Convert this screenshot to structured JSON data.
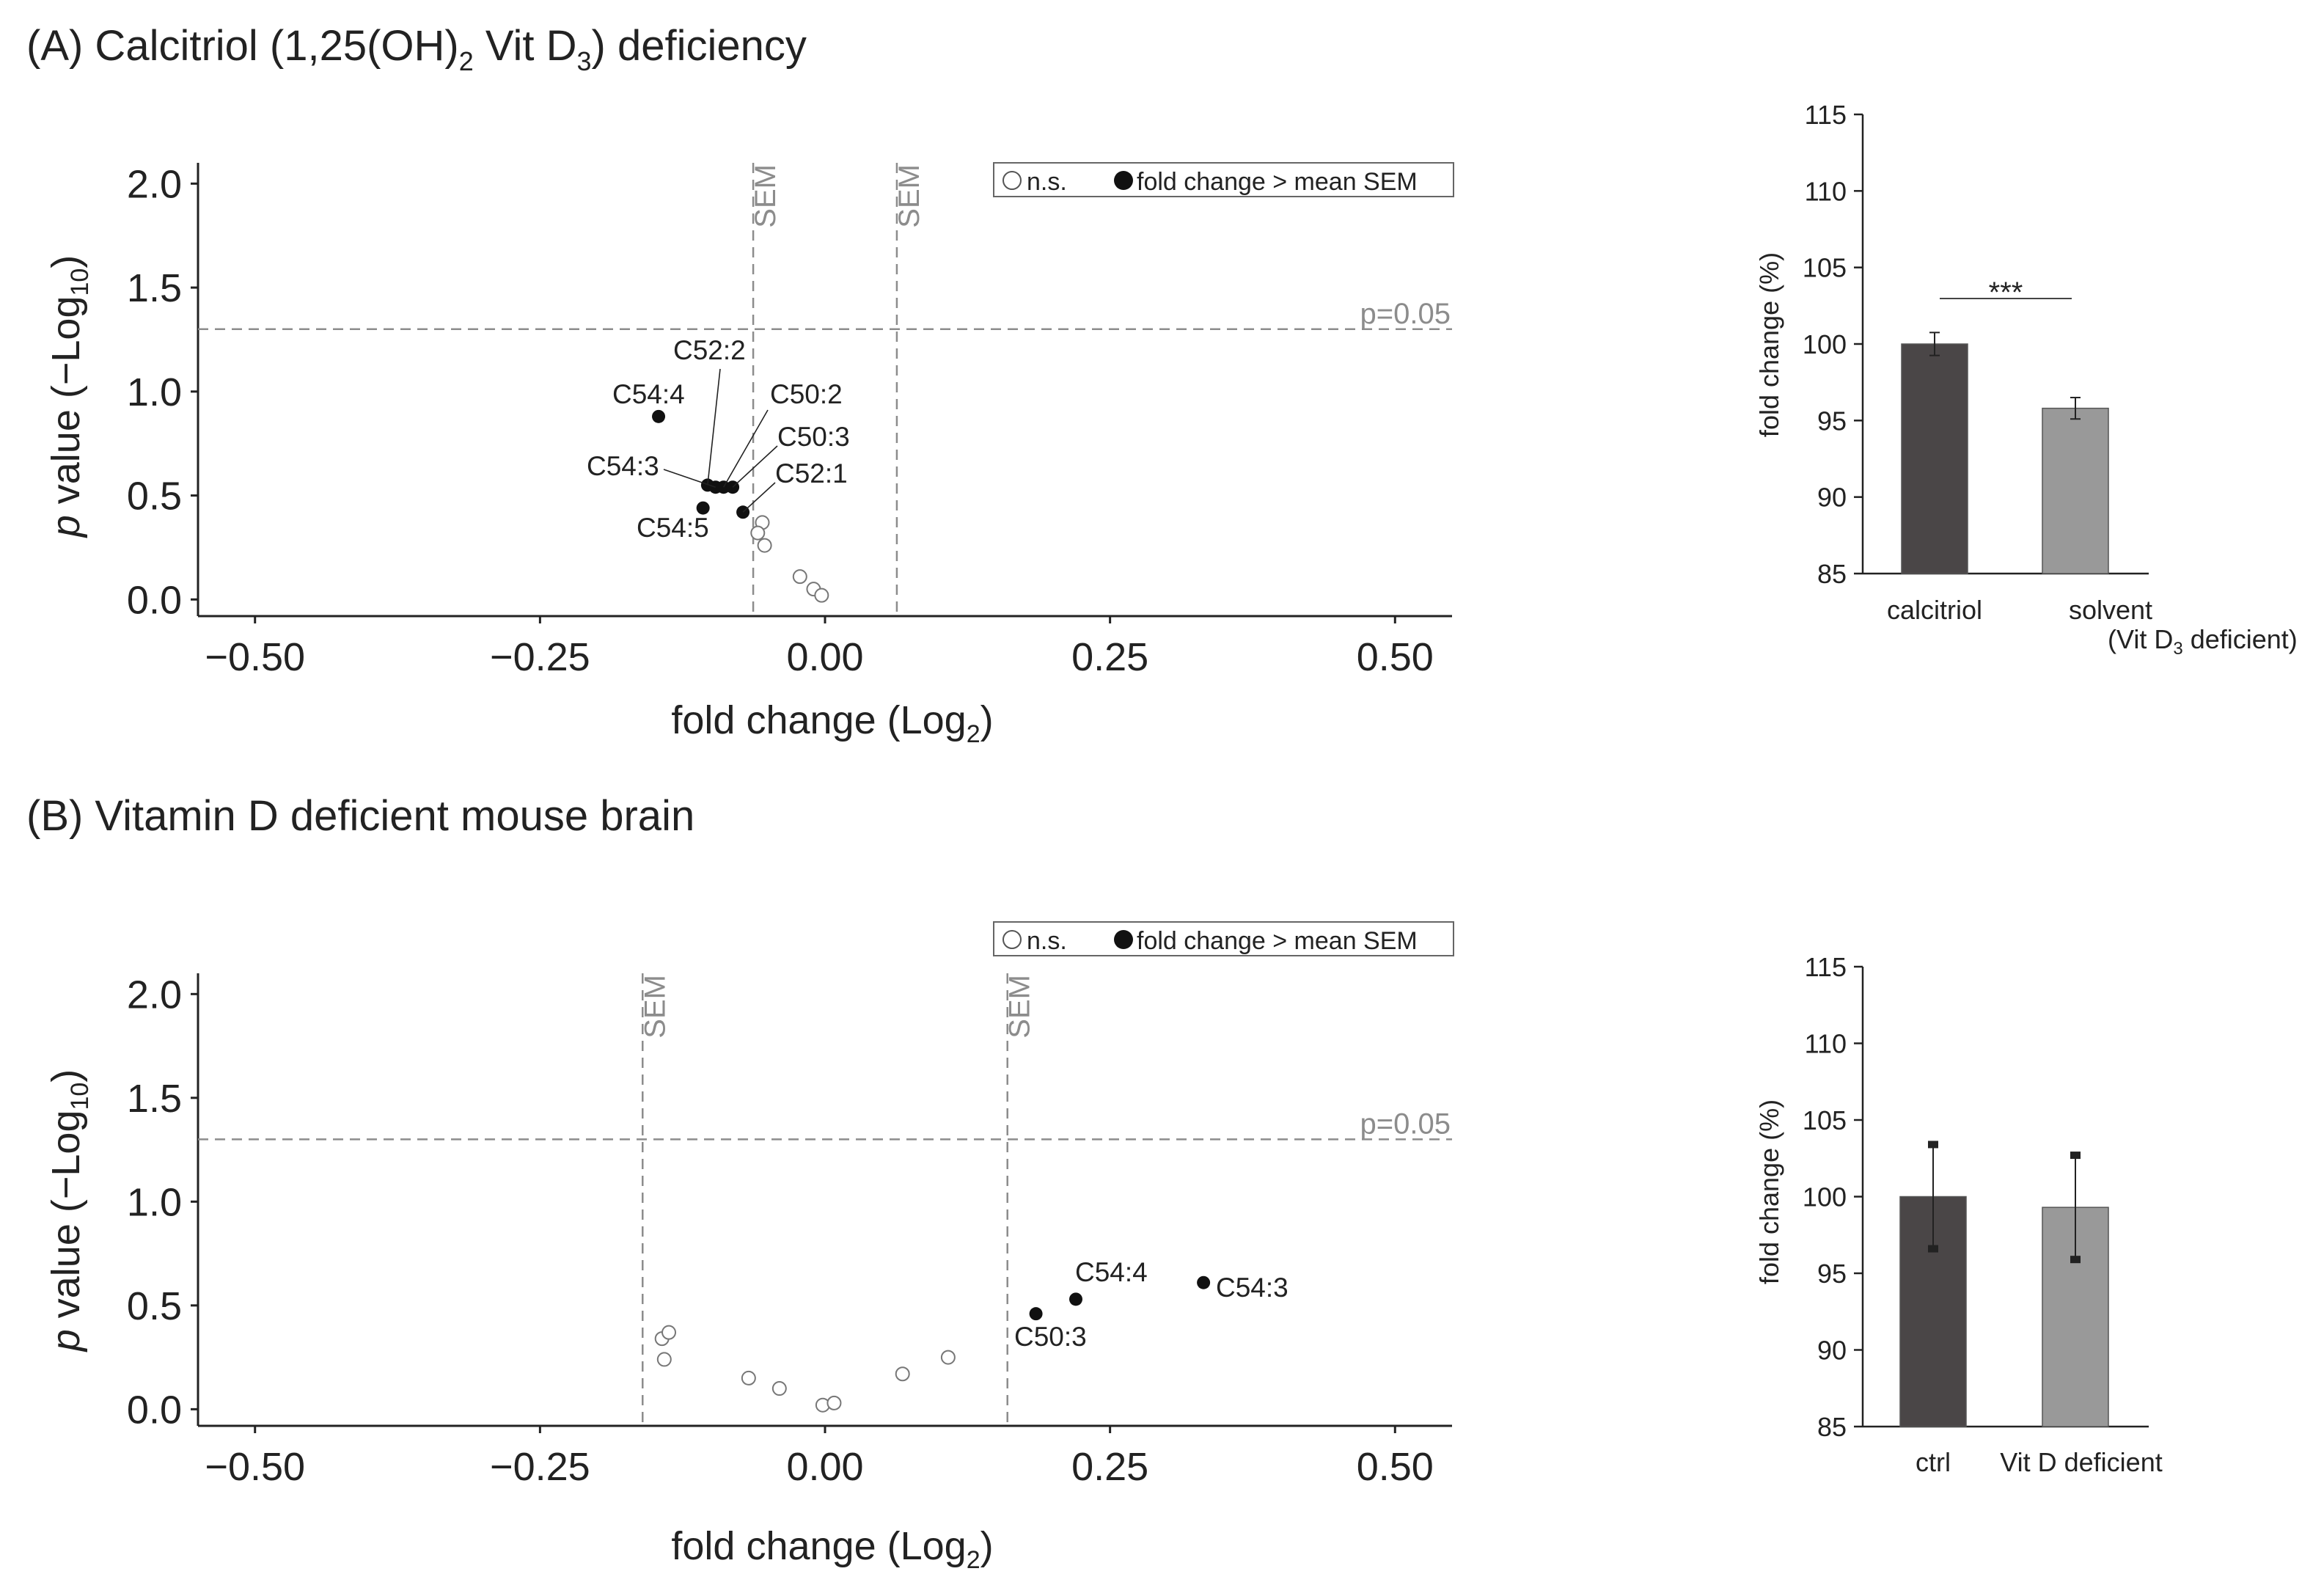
{
  "panel_a": {
    "title_main": "(A) Calcitriol (1,25(OH)",
    "title_sub2": "2",
    "title_mid": " Vit D",
    "title_sub3": "3",
    "title_end": ") deficiency"
  },
  "panel_b": {
    "title": "(B) Vitamin D deficient mouse brain"
  },
  "legend": {
    "ns_label": "n.s.",
    "sig_label": "fold change > mean SEM"
  },
  "sem_label": "SEM",
  "pthreshold_label": "p=0.05",
  "volcano_xlabel_main": "fold change (Log",
  "volcano_xlabel_sub": "2",
  "volcano_xlabel_end": ")",
  "volcano_ylabel_italic": "p",
  "volcano_ylabel_main": " value (−Log",
  "volcano_ylabel_sub": "10",
  "volcano_ylabel_end": ")",
  "bar_ylabel": "fold change (%)",
  "significance": "***",
  "bar_a_cat2_line2_main": "(Vit D",
  "bar_a_cat2_line2_sub": "3",
  "bar_a_cat2_line2_end": " deficient)",
  "colors": {
    "sig": "#111111",
    "ns_stroke": "#777777",
    "dash": "#8c8c8c",
    "dark_bar": "#4a4647",
    "light_bar": "#999999",
    "grey_text": "#8c8c8c"
  },
  "chart_data": [
    {
      "type": "scatter",
      "name": "volcano_A",
      "xlim": [
        -0.55,
        0.55
      ],
      "ylim": [
        -0.08,
        2.1
      ],
      "xticks": [
        -0.5,
        -0.25,
        0,
        0.25,
        0.5
      ],
      "xtick_labels": [
        "−0.50",
        "−0.25",
        "0.00",
        "0.25",
        "0.50"
      ],
      "yticks": [
        0,
        0.5,
        1.0,
        1.5,
        2.0
      ],
      "ytick_labels": [
        "0.0",
        "0.5",
        "1.0",
        "1.5",
        "2.0"
      ],
      "sem_lines": [
        -0.063,
        0.063
      ],
      "p_threshold": 1.3,
      "points_sig": [
        {
          "label": "C54:4",
          "x": -0.146,
          "y": 0.88
        },
        {
          "label": "C52:2",
          "x": -0.103,
          "y": 0.55
        },
        {
          "label": "C50:2",
          "x": -0.089,
          "y": 0.54
        },
        {
          "label": "C50:3",
          "x": -0.081,
          "y": 0.54
        },
        {
          "label": "C54:3",
          "x": -0.096,
          "y": 0.54
        },
        {
          "label": "C52:1",
          "x": -0.072,
          "y": 0.42
        },
        {
          "label": "C54:5",
          "x": -0.107,
          "y": 0.44
        }
      ],
      "points_ns": [
        {
          "x": -0.055,
          "y": 0.37
        },
        {
          "x": -0.059,
          "y": 0.32
        },
        {
          "x": -0.053,
          "y": 0.26
        },
        {
          "x": -0.022,
          "y": 0.11
        },
        {
          "x": -0.01,
          "y": 0.05
        },
        {
          "x": -0.003,
          "y": 0.02
        }
      ]
    },
    {
      "type": "bar",
      "name": "bar_A",
      "categories": [
        "calcitriol",
        "solvent"
      ],
      "values": [
        100,
        95.8
      ],
      "errors": [
        0.75,
        0.7
      ],
      "ylim": [
        85,
        115
      ],
      "yticks": [
        85,
        90,
        95,
        100,
        105,
        110,
        115
      ],
      "ytick_labels": [
        "85",
        "90",
        "95",
        "100",
        "105",
        "110",
        "115"
      ]
    },
    {
      "type": "scatter",
      "name": "volcano_B",
      "xlim": [
        -0.55,
        0.55
      ],
      "ylim": [
        -0.08,
        2.1
      ],
      "xticks": [
        -0.5,
        -0.25,
        0,
        0.25,
        0.5
      ],
      "xtick_labels": [
        "−0.50",
        "−0.25",
        "0.00",
        "0.25",
        "0.50"
      ],
      "yticks": [
        0,
        0.5,
        1.0,
        1.5,
        2.0
      ],
      "ytick_labels": [
        "0.0",
        "0.5",
        "1.0",
        "1.5",
        "2.0"
      ],
      "sem_lines": [
        -0.16,
        0.16
      ],
      "p_threshold": 1.3,
      "points_sig": [
        {
          "label": "C50:3",
          "x": 0.185,
          "y": 0.46
        },
        {
          "label": "C54:4",
          "x": 0.22,
          "y": 0.53
        },
        {
          "label": "C54:3",
          "x": 0.332,
          "y": 0.61
        }
      ],
      "points_ns": [
        {
          "x": -0.143,
          "y": 0.34
        },
        {
          "x": -0.137,
          "y": 0.37
        },
        {
          "x": -0.141,
          "y": 0.24
        },
        {
          "x": -0.067,
          "y": 0.15
        },
        {
          "x": -0.04,
          "y": 0.1
        },
        {
          "x": -0.002,
          "y": 0.02
        },
        {
          "x": 0.008,
          "y": 0.03
        },
        {
          "x": 0.068,
          "y": 0.17
        },
        {
          "x": 0.108,
          "y": 0.25
        }
      ]
    },
    {
      "type": "bar",
      "name": "bar_B",
      "categories": [
        "ctrl",
        "Vit D deficient"
      ],
      "values": [
        100,
        99.3
      ],
      "errors": [
        3.4,
        3.4
      ],
      "ylim": [
        85,
        115
      ],
      "yticks": [
        85,
        90,
        95,
        100,
        105,
        110,
        115
      ],
      "ytick_labels": [
        "85",
        "90",
        "95",
        "100",
        "105",
        "110",
        "115"
      ]
    }
  ]
}
